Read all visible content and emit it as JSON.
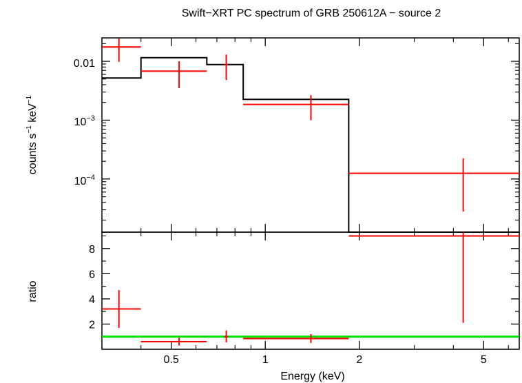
{
  "chart_data": {
    "type": "scatter",
    "title": "Swift−XRT PC spectrum of GRB 250612A − source 2",
    "xlabel": "Energy (keV)",
    "x_scale": "log",
    "xlim": [
      0.3,
      6.5
    ],
    "x_ticks": [
      "0.5",
      "1",
      "2",
      "5"
    ],
    "panels": {
      "spectrum": {
        "ylabel_parts": {
          "counts": "counts s",
          "exp1": "−1",
          "kev": " keV",
          "exp2": "−1"
        },
        "y_scale": "log",
        "ylim": [
          1.25e-05,
          0.025
        ],
        "y_ticks": [
          {
            "base": "0.01",
            "sup": ""
          },
          {
            "base": "10",
            "sup": "−3"
          },
          {
            "base": "10",
            "sup": "−4"
          }
        ],
        "data_series": {
          "color": "#ff0000",
          "points": [
            {
              "x": 0.34,
              "xlo": 0.3,
              "xhi": 0.4,
              "y": 0.0175,
              "ylo": 0.0098,
              "yhi": 0.0245
            },
            {
              "x": 0.53,
              "xlo": 0.4,
              "xhi": 0.65,
              "y": 0.0068,
              "ylo": 0.0035,
              "yhi": 0.01
            },
            {
              "x": 0.75,
              "xlo": 0.74,
              "xhi": 0.76,
              "y": 0.0088,
              "ylo": 0.0048,
              "yhi": 0.013
            },
            {
              "x": 1.4,
              "xlo": 0.85,
              "xhi": 1.85,
              "y": 0.00185,
              "ylo": 0.001,
              "yhi": 0.00265
            },
            {
              "x": 4.3,
              "xlo": 1.85,
              "xhi": 6.5,
              "y": 0.000125,
              "ylo": 2.8e-05,
              "yhi": 0.000225
            }
          ]
        },
        "model_series": {
          "color": "#000000",
          "steps": [
            {
              "xlo": 0.3,
              "xhi": 0.4,
              "y": 0.0052
            },
            {
              "xlo": 0.4,
              "xhi": 0.65,
              "y": 0.0115
            },
            {
              "xlo": 0.65,
              "xhi": 0.85,
              "y": 0.0088
            },
            {
              "xlo": 0.85,
              "xhi": 1.85,
              "y": 0.00225
            },
            {
              "xlo": 1.85,
              "xhi": 6.5,
              "y": 1.25e-05
            }
          ]
        }
      },
      "ratio": {
        "ylabel": "ratio",
        "y_scale": "linear",
        "ylim": [
          0,
          9.3
        ],
        "y_ticks": [
          "2",
          "4",
          "6",
          "8"
        ],
        "reference_line": {
          "y": 1,
          "color": "#00dd00"
        },
        "data_series": {
          "color": "#ff0000",
          "points": [
            {
              "x": 0.34,
              "xlo": 0.3,
              "xhi": 0.4,
              "y": 3.2,
              "ylo": 1.7,
              "yhi": 4.7
            },
            {
              "x": 0.53,
              "xlo": 0.4,
              "xhi": 0.65,
              "y": 0.6,
              "ylo": 0.3,
              "yhi": 0.9
            },
            {
              "x": 0.75,
              "xlo": 0.74,
              "xhi": 0.76,
              "y": 1.0,
              "ylo": 0.55,
              "yhi": 1.5
            },
            {
              "x": 1.4,
              "xlo": 0.85,
              "xhi": 1.85,
              "y": 0.85,
              "ylo": 0.5,
              "yhi": 1.2
            },
            {
              "x": 4.3,
              "xlo": 1.85,
              "xhi": 6.5,
              "y": 9.0,
              "ylo": 2.1,
              "yhi": 9.3
            }
          ]
        }
      }
    },
    "grid": false,
    "legend": "none"
  }
}
